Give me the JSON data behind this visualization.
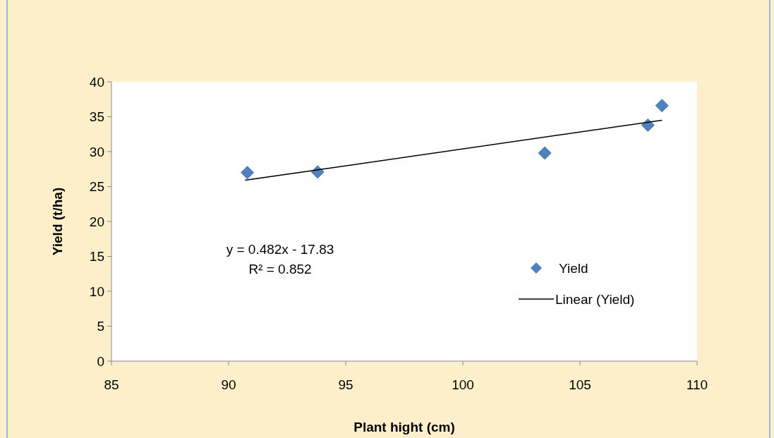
{
  "chart_data": {
    "type": "scatter",
    "xlabel": "Plant hight (cm)",
    "ylabel": "Yield (t/ha)",
    "xlim": [
      85,
      110
    ],
    "xticks": [
      85,
      90,
      95,
      100,
      105,
      110
    ],
    "ylim": [
      0,
      40
    ],
    "yticks": [
      0,
      5,
      10,
      15,
      20,
      25,
      30,
      35,
      40
    ],
    "grid": false,
    "legend": "right",
    "marker": "diamond",
    "annotations": [
      "y = 0.482x - 17.83",
      "R² = 0.852"
    ],
    "series": [
      {
        "name": "Yield",
        "color": "#4f81bd",
        "x": [
          90.8,
          93.8,
          103.5,
          107.9,
          108.5
        ],
        "values": [
          27.0,
          27.1,
          29.8,
          33.8,
          36.6
        ]
      },
      {
        "name": "Linear (Yield)",
        "type": "line",
        "color": "#000000",
        "marker": "none",
        "line_style": "solid",
        "x": [
          90.7,
          108.5
        ],
        "values": [
          25.9,
          34.5
        ]
      }
    ]
  }
}
